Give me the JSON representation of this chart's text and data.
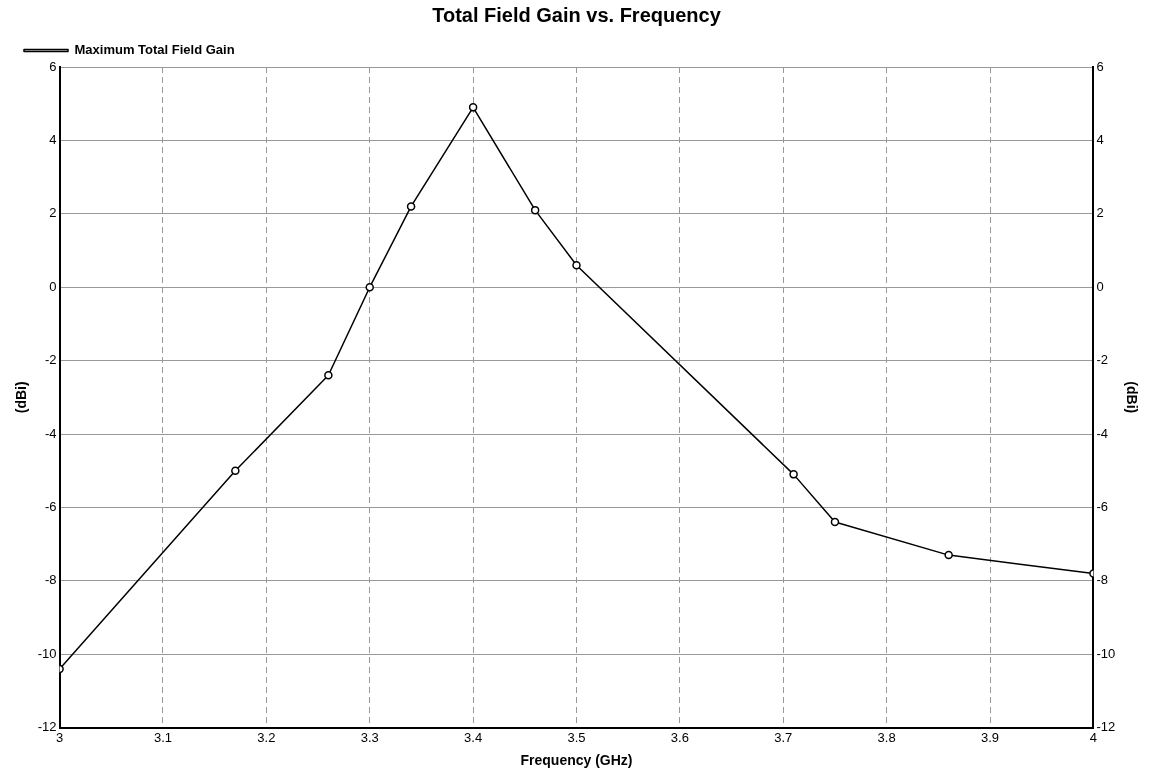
{
  "chart_data": {
    "type": "line",
    "title": "Total Field Gain vs. Frequency",
    "xlabel": "Frequency (GHz)",
    "ylabel": "(dBi)",
    "y2label": "(dBi)",
    "series": [
      {
        "name": "Maximum Total Field Gain",
        "color": "#000000",
        "x": [
          3,
          3.17,
          3.26,
          3.3,
          3.34,
          3.4,
          3.46,
          3.5,
          3.71,
          3.75,
          3.86,
          4
        ],
        "values": [
          -10.4,
          -5.0,
          -2.4,
          0,
          2.2,
          4.9,
          2.1,
          0.6,
          -5.1,
          -6.4,
          -7.3,
          -7.8
        ]
      }
    ],
    "xlim": [
      3,
      4
    ],
    "xticks": [
      3,
      3.1,
      3.2,
      3.3,
      3.4,
      3.5,
      3.6,
      3.7,
      3.8,
      3.9,
      4
    ],
    "ylim": [
      -12,
      6
    ],
    "yticks": [
      -12,
      -10,
      -8,
      -6,
      -4,
      -2,
      0,
      2,
      4,
      6
    ],
    "y2lim": [
      -12,
      6
    ],
    "y2ticks": [
      -12,
      -10,
      -8,
      -6,
      -4,
      -2,
      0,
      2,
      4,
      6
    ],
    "grid": true,
    "legend": "top left",
    "marker": "circle",
    "line_style": "solid"
  }
}
